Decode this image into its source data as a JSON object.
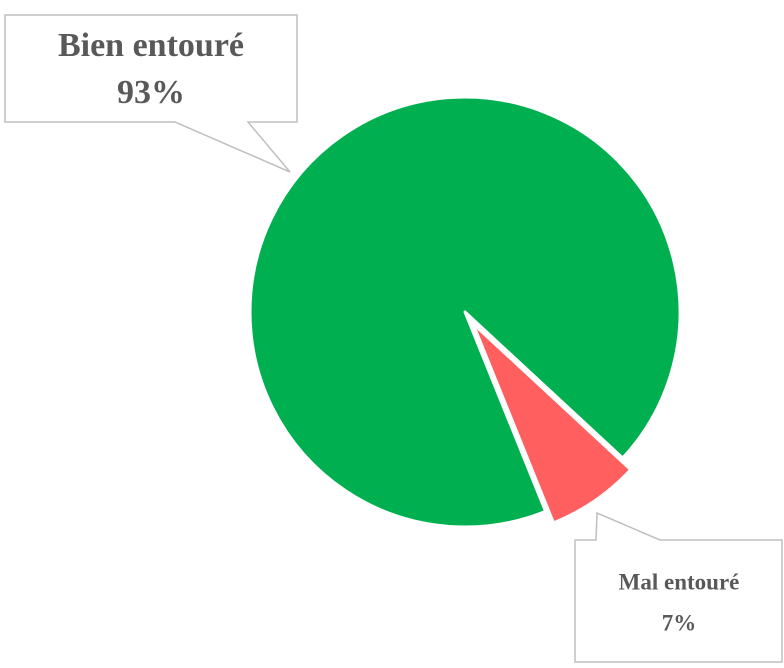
{
  "chart_data": {
    "type": "pie",
    "categories": [
      "Bien entouré",
      "Mal entouré"
    ],
    "values": [
      93,
      7
    ],
    "value_labels": [
      "93%",
      "7%"
    ],
    "colors": [
      "#00b050",
      "#ff5f5f"
    ]
  }
}
